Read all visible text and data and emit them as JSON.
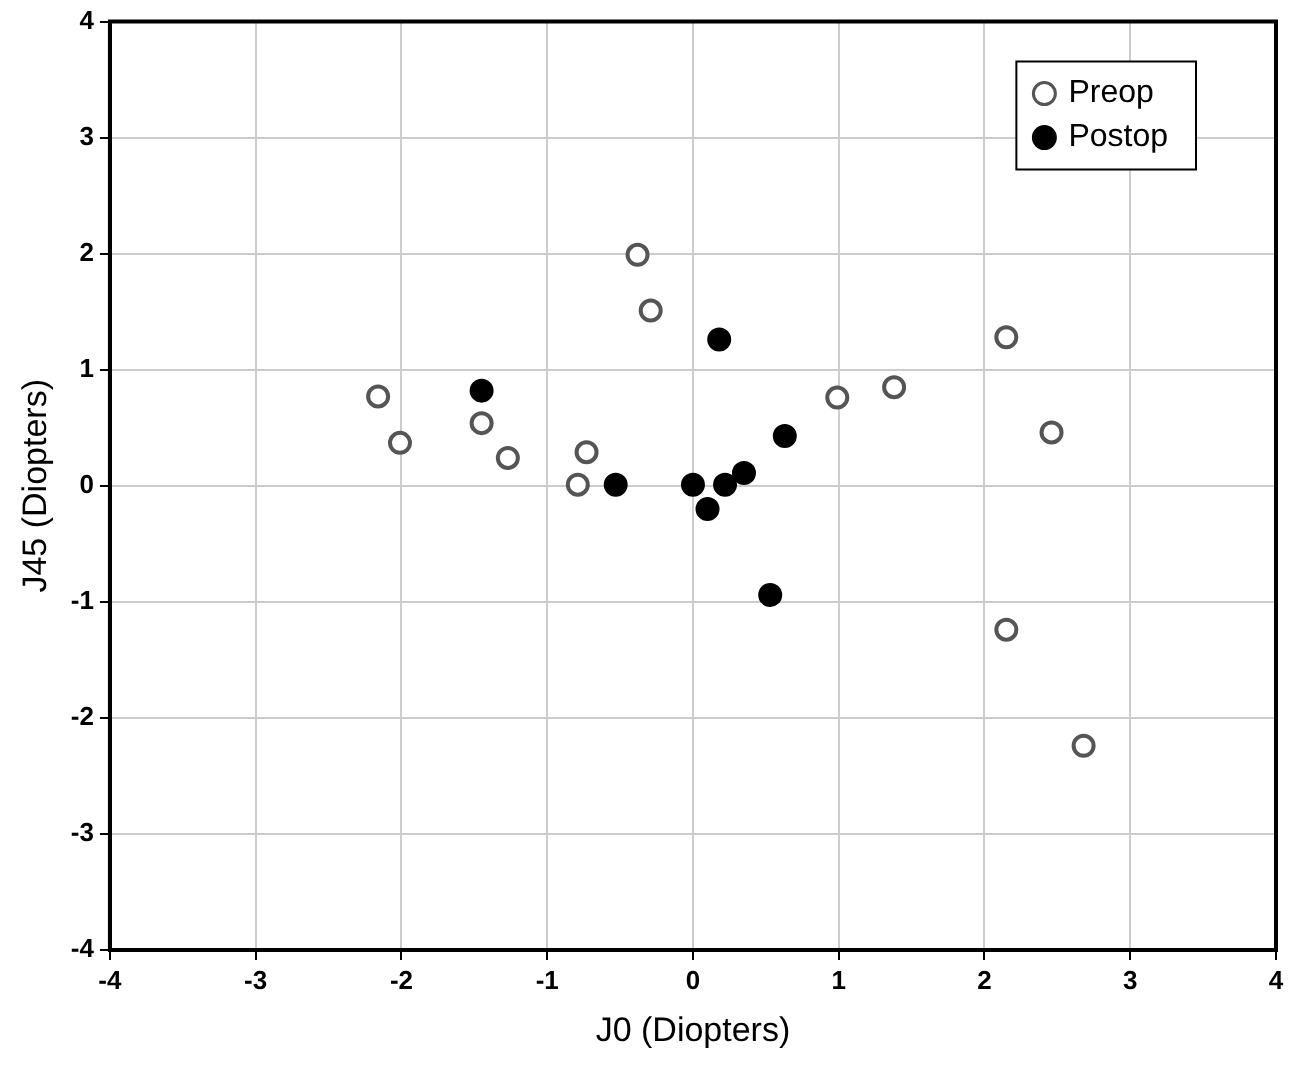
{
  "chart_data": {
    "type": "scatter",
    "xlabel": "J0 (Diopters)",
    "ylabel": "J45 (Diopters)",
    "xlim": [
      -4,
      4
    ],
    "xticks": [
      -4,
      -3,
      -2,
      -1,
      0,
      1,
      2,
      3,
      4
    ],
    "ylim": [
      -4,
      4
    ],
    "yticks": [
      -4,
      -3,
      -2,
      -1,
      0,
      1,
      2,
      3,
      4
    ],
    "grid": true,
    "legend": "top right",
    "marker": "circle",
    "series": [
      {
        "name": "Preop",
        "color": "#555555",
        "x": [
          -2.16,
          -2.01,
          -1.45,
          -1.27,
          -0.79,
          -0.73,
          -0.38,
          -0.29,
          0.99,
          1.38,
          2.15,
          2.46,
          2.15,
          2.68
        ],
        "values": [
          0.77,
          0.37,
          0.54,
          0.24,
          0.01,
          0.29,
          1.99,
          1.51,
          0.76,
          0.85,
          1.28,
          0.46,
          -1.24,
          -2.24
        ]
      },
      {
        "name": "Postop",
        "color": "#000000",
        "x": [
          -1.45,
          -0.53,
          0,
          0.1,
          0.22,
          0.35,
          0.18,
          0.63,
          0.53
        ],
        "values": [
          0.82,
          0.01,
          0.01,
          -0.2,
          0.01,
          0.11,
          1.26,
          0.43,
          -0.94
        ]
      }
    ]
  }
}
